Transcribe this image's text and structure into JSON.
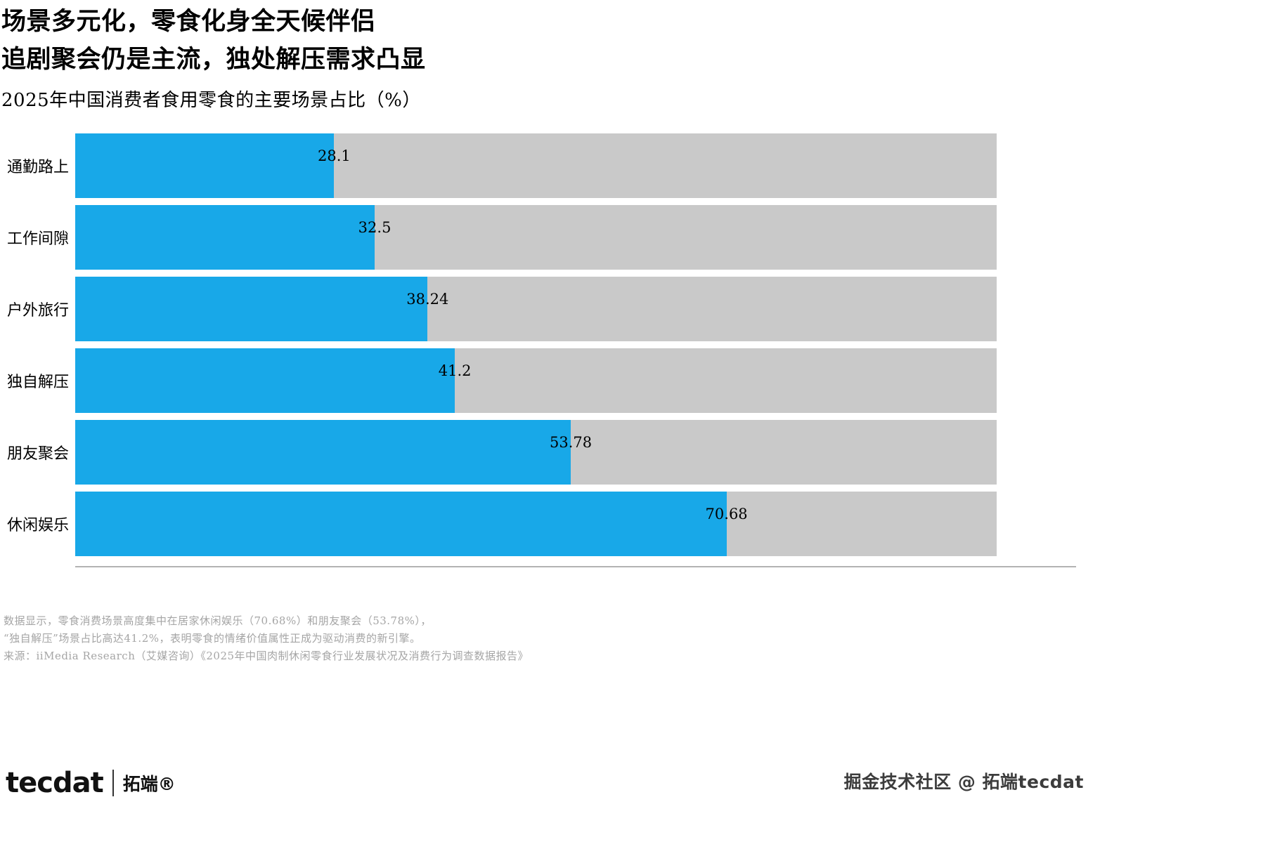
{
  "page": {
    "title_line1": "场景多元化，零食化身全天候伴侣",
    "title_line2": "追剧聚会仍是主流，独处解压需求凸显",
    "subtitle": "2025年中国消费者食用零食的主要场景占比（%）"
  },
  "chart_data": {
    "type": "bar",
    "orientation": "horizontal",
    "title": "2025年中国消费者食用零食的主要场景占比（%）",
    "categories": [
      "通勤路上",
      "工作间隙",
      "户外旅行",
      "独自解压",
      "朋友聚会",
      "休闲娱乐"
    ],
    "values": [
      28.1,
      32.5,
      38.24,
      41.2,
      53.78,
      70.68
    ],
    "value_labels": [
      "28.1",
      "32.5",
      "38.24",
      "41.2",
      "53.78",
      "70.68"
    ],
    "xlim": [
      0,
      100
    ],
    "bar_color": "#18a8e8",
    "track_color": "#c9c9c9",
    "grid": false,
    "legend": "none"
  },
  "footnotes": [
    "数据显示，零食消费场景高度集中在居家休闲娱乐（70.68%）和朋友聚会（53.78%），",
    "“独自解压”场景占比高达41.2%，表明零食的情绪价值属性正成为驱动消费的新引擎。",
    "来源：iiMedia Research（艾媒咨询）《2025年中国肉制休闲零食行业发展状况及消费行为调查数据报告》"
  ],
  "footer": {
    "logo_text": "tecdat",
    "logo_suffix": "拓端®",
    "watermark": "掘金技术社区 @ 拓端tecdat"
  }
}
